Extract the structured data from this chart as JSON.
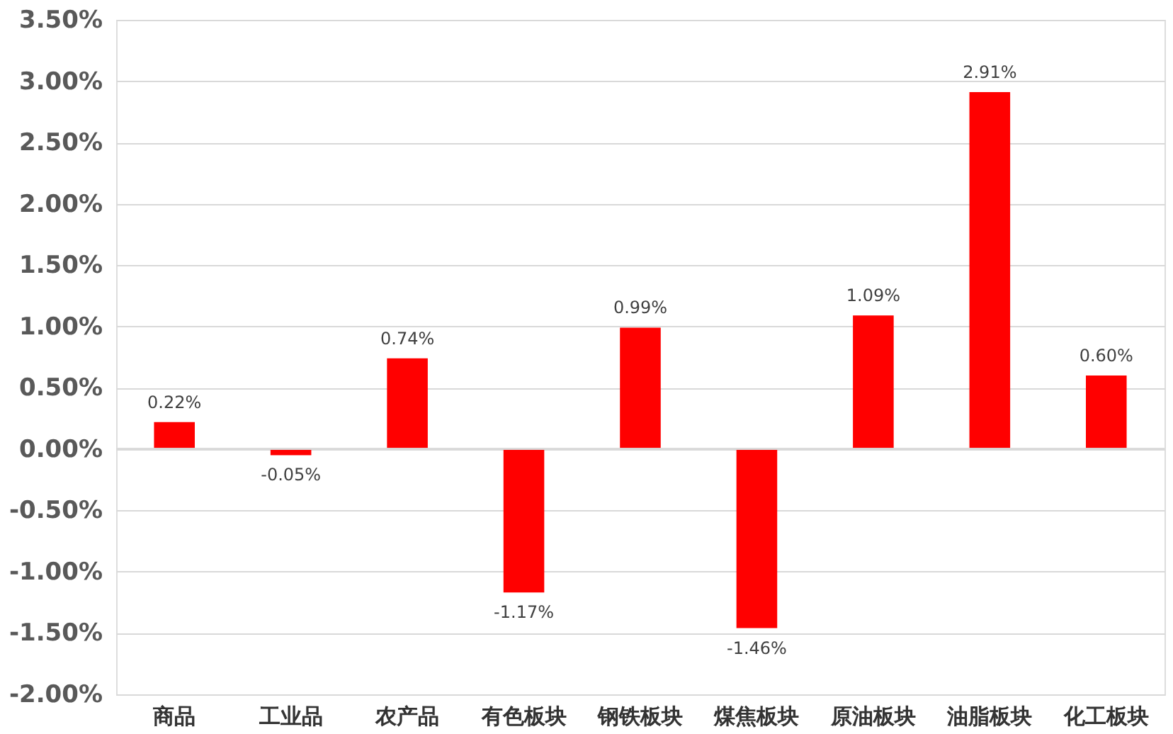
{
  "chart_data": {
    "type": "bar",
    "categories": [
      "商品",
      "工业品",
      "农产品",
      "有色板块",
      "钢铁板块",
      "煤焦板块",
      "原油板块",
      "油脂板块",
      "化工板块"
    ],
    "values": [
      0.22,
      -0.05,
      0.74,
      -1.17,
      0.99,
      -1.46,
      1.09,
      2.91,
      0.6
    ],
    "value_labels": [
      "0.22%",
      "-0.05%",
      "0.74%",
      "-1.17%",
      "0.99%",
      "-1.46%",
      "1.09%",
      "2.91%",
      "0.60%"
    ],
    "color": "#ff0000",
    "ylim": [
      -2.0,
      3.5
    ],
    "yticks": [
      {
        "value": -2.0,
        "label": "-2.00%"
      },
      {
        "value": -1.5,
        "label": "-1.50%"
      },
      {
        "value": -1.0,
        "label": "-1.00%"
      },
      {
        "value": -0.5,
        "label": "-0.50%"
      },
      {
        "value": 0,
        "label": "0.00%"
      },
      {
        "value": 0.5,
        "label": "0.50%"
      },
      {
        "value": 1.0,
        "label": "1.00%"
      },
      {
        "value": 1.5,
        "label": "1.50%"
      },
      {
        "value": 2.0,
        "label": "2.00%"
      },
      {
        "value": 2.5,
        "label": "2.50%"
      },
      {
        "value": 3.0,
        "label": "3.00%"
      },
      {
        "value": 3.5,
        "label": "3.50%"
      }
    ],
    "grid": "y"
  }
}
